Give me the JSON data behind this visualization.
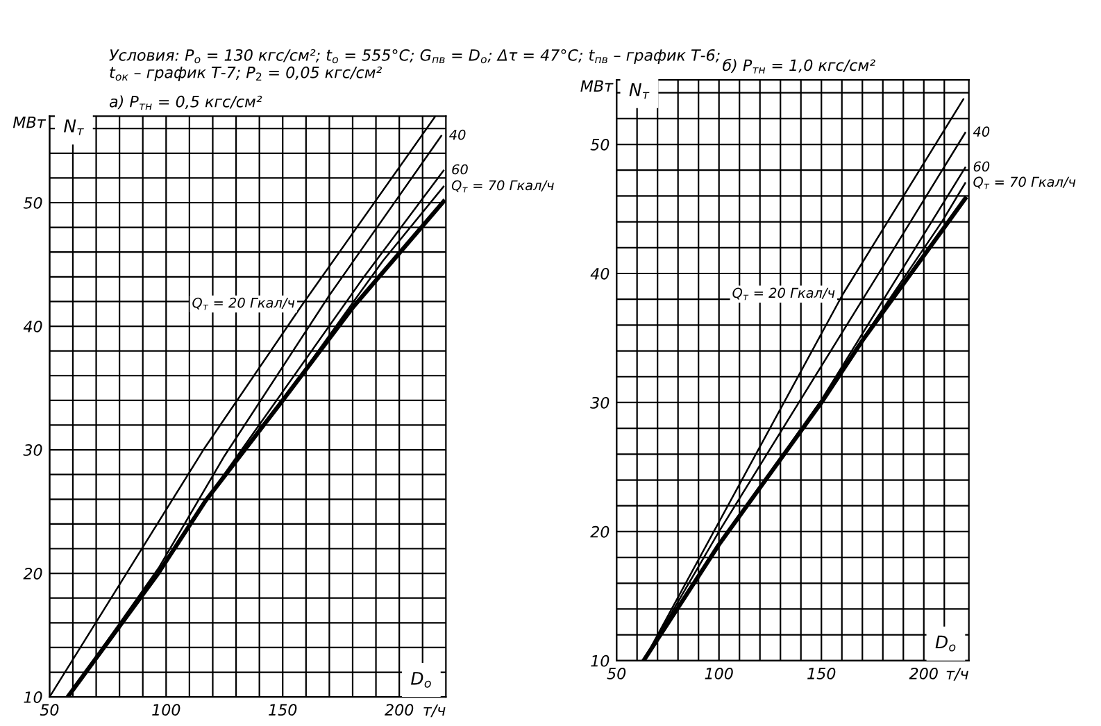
{
  "chart_data": [
    {
      "type": "line",
      "title": "Условия: P$_{о}$ = 130 кгс/см²; t$_{о}$ = 555°С; G$_{пв}$ = D$_{о}$; Δτ = 47°С; t$_{пв}$ – график Т-6;\nt$_{ок}$ – график Т-7; P$_{2}$ = 0,05 кгс/см²",
      "subtitle": "а) P$_{тн}$ = 0,5 кгс/см²",
      "xlabel": "т/ч",
      "ylabel": "МВт",
      "annotations": [
        "N$_{т}$",
        "D$_{о}$"
      ],
      "xlim": [
        50,
        220
      ],
      "ylim": [
        10,
        57
      ],
      "xticks": [
        50,
        {
          "value": 60,
          "label": null
        },
        {
          "value": 70,
          "label": null
        },
        {
          "value": 80,
          "label": null
        },
        {
          "value": 90,
          "label": null
        },
        100,
        {
          "value": 110,
          "label": null
        },
        {
          "value": 120,
          "label": null
        },
        {
          "value": 130,
          "label": null
        },
        {
          "value": 140,
          "label": null
        },
        150,
        {
          "value": 160,
          "label": null
        },
        {
          "value": 170,
          "label": null
        },
        {
          "value": 180,
          "label": null
        },
        {
          "value": 190,
          "label": null
        },
        200,
        {
          "value": 210,
          "label": null
        }
      ],
      "yticks": [
        10,
        {
          "value": 12,
          "label": null
        },
        {
          "value": 14,
          "label": null
        },
        {
          "value": 16,
          "label": null
        },
        {
          "value": 18,
          "label": null
        },
        20,
        {
          "value": 22,
          "label": null
        },
        {
          "value": 24,
          "label": null
        },
        {
          "value": 26,
          "label": null
        },
        {
          "value": 28,
          "label": null
        },
        30,
        {
          "value": 32,
          "label": null
        },
        {
          "value": 34,
          "label": null
        },
        {
          "value": 36,
          "label": null
        },
        {
          "value": 38,
          "label": null
        },
        40,
        {
          "value": 42,
          "label": null
        },
        {
          "value": 44,
          "label": null
        },
        {
          "value": 46,
          "label": null
        },
        {
          "value": 48,
          "label": null
        },
        50,
        {
          "value": 52,
          "label": null
        },
        {
          "value": 54,
          "label": null
        },
        {
          "value": 56,
          "label": null
        }
      ],
      "grid": true,
      "legend": false,
      "marker": "none",
      "line_style": "solid",
      "series": [
        {
          "name": "Q$_{т}$ = 70 Гкал/ч",
          "color": "#000000",
          "x": [
            57.8,
            96.6,
            117,
            150,
            193,
            219
          ],
          "values": [
            10,
            20,
            25.9,
            34,
            45.3,
            51.3
          ]
        },
        {
          "name": "60",
          "color": "#000000",
          "x": [
            57.8,
            96.6,
            117,
            184.5,
            219
          ],
          "values": [
            10,
            20,
            25.9,
            43.9,
            52.6
          ]
        },
        {
          "name": "40",
          "color": "#000000",
          "x": [
            57.8,
            97,
            125,
            170,
            218
          ],
          "values": [
            10,
            20.5,
            29.5,
            42.5,
            55.4
          ]
        },
        {
          "name": "Q$_{т}$ = 20 Гкал/ч",
          "color": "#000000",
          "x": [
            50,
            116,
            158.6,
            215.5
          ],
          "values": [
            10,
            30,
            41.8,
            57
          ]
        },
        {
          "color": "#000000",
          "x": [
            57.8,
            96.6,
            117,
            150,
            180,
            219
          ],
          "values": [
            10,
            20,
            25.9,
            34,
            41.5,
            50.1
          ]
        }
      ]
    },
    {
      "type": "line",
      "title": "б) P$_{тн}$ = 1,0 кгс/см²",
      "xlabel": "т/ч",
      "ylabel": "МВт",
      "annotations": [
        "N$_{т}$",
        "D$_{о}$"
      ],
      "xlim": [
        50,
        222
      ],
      "ylim": [
        10,
        55
      ],
      "xticks": [
        50,
        {
          "value": 60,
          "label": null
        },
        {
          "value": 70,
          "label": null
        },
        {
          "value": 80,
          "label": null
        },
        {
          "value": 90,
          "label": null
        },
        100,
        {
          "value": 110,
          "label": null
        },
        {
          "value": 120,
          "label": null
        },
        {
          "value": 130,
          "label": null
        },
        {
          "value": 140,
          "label": null
        },
        150,
        {
          "value": 160,
          "label": null
        },
        {
          "value": 170,
          "label": null
        },
        {
          "value": 180,
          "label": null
        },
        {
          "value": 190,
          "label": null
        },
        200,
        {
          "value": 210,
          "label": null
        }
      ],
      "yticks": [
        10,
        {
          "value": 12,
          "label": null
        },
        {
          "value": 14,
          "label": null
        },
        {
          "value": 16,
          "label": null
        },
        {
          "value": 18,
          "label": null
        },
        20,
        {
          "value": 22,
          "label": null
        },
        {
          "value": 24,
          "label": null
        },
        {
          "value": 26,
          "label": null
        },
        {
          "value": 28,
          "label": null
        },
        30,
        {
          "value": 32,
          "label": null
        },
        {
          "value": 34,
          "label": null
        },
        {
          "value": 36,
          "label": null
        },
        {
          "value": 38,
          "label": null
        },
        40,
        {
          "value": 42,
          "label": null
        },
        {
          "value": 44,
          "label": null
        },
        {
          "value": 46,
          "label": null
        },
        {
          "value": 48,
          "label": null
        },
        50,
        {
          "value": 52,
          "label": null
        },
        {
          "value": 54,
          "label": null
        }
      ],
      "grid": true,
      "legend": false,
      "marker": "none",
      "line_style": "solid",
      "series": [
        {
          "name": "Q$_{т}$ = 70 Гкал/ч",
          "color": "#000000",
          "x": [
            63.2,
            100,
            150,
            170,
            208.8,
            220.2
          ],
          "values": [
            10,
            19,
            30,
            34.9,
            44,
            47
          ]
        },
        {
          "name": "60",
          "color": "#000000",
          "x": [
            63.2,
            100,
            150,
            195.6,
            220.2
          ],
          "values": [
            10,
            19,
            30.2,
            41.9,
            48.2
          ]
        },
        {
          "name": "40",
          "color": "#000000",
          "x": [
            63.2,
            100,
            177.2,
            220.2
          ],
          "values": [
            10,
            20,
            39.8,
            50.9
          ]
        },
        {
          "name": "Q$_{т}$ = 20 Гкал/ч",
          "color": "#000000",
          "x": [
            63.2,
            160.5,
            219.3
          ],
          "values": [
            10,
            38.4,
            53.5
          ]
        },
        {
          "color": "#000000",
          "x": [
            63.2,
            100,
            150,
            170,
            220.2
          ],
          "values": [
            10,
            19,
            30,
            34.8,
            45.8
          ]
        }
      ]
    }
  ]
}
